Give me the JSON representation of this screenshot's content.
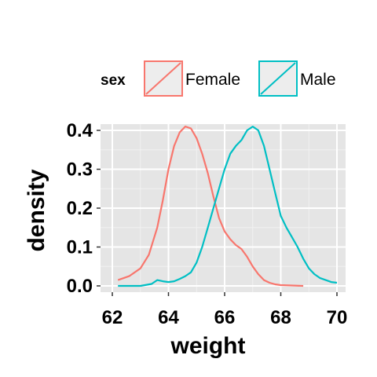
{
  "chart_data": {
    "type": "line",
    "title": "",
    "xlabel": "weight",
    "ylabel": "density",
    "xlim": [
      62,
      70
    ],
    "ylim": [
      0,
      0.4
    ],
    "x_ticks": [
      "62",
      "64",
      "66",
      "68",
      "70"
    ],
    "y_ticks": [
      "0.0",
      "0.1",
      "0.2",
      "0.3",
      "0.4"
    ],
    "grid": true,
    "legend": {
      "title": "sex",
      "placement": "top",
      "entries": [
        "Female",
        "Male"
      ]
    },
    "series": [
      {
        "name": "Female",
        "color": "#f8766d",
        "x": [
          62.2,
          62.6,
          63.0,
          63.3,
          63.6,
          63.8,
          64.0,
          64.2,
          64.4,
          64.6,
          64.8,
          65.0,
          65.2,
          65.4,
          65.6,
          65.8,
          66.0,
          66.2,
          66.4,
          66.6,
          66.8,
          67.0,
          67.2,
          67.4,
          67.6,
          67.8,
          68.0,
          68.4,
          68.8
        ],
        "y": [
          0.015,
          0.025,
          0.045,
          0.08,
          0.15,
          0.22,
          0.3,
          0.36,
          0.395,
          0.41,
          0.405,
          0.38,
          0.34,
          0.29,
          0.23,
          0.175,
          0.14,
          0.12,
          0.105,
          0.095,
          0.075,
          0.05,
          0.03,
          0.015,
          0.008,
          0.004,
          0.002,
          0.001,
          0.0
        ]
      },
      {
        "name": "Male",
        "color": "#00bfc4",
        "x": [
          62.2,
          63.0,
          63.4,
          63.6,
          63.8,
          64.0,
          64.2,
          64.4,
          64.6,
          64.8,
          65.0,
          65.2,
          65.4,
          65.6,
          65.8,
          66.0,
          66.2,
          66.4,
          66.6,
          66.8,
          67.0,
          67.2,
          67.4,
          67.6,
          67.8,
          68.0,
          68.2,
          68.4,
          68.6,
          68.8,
          69.0,
          69.2,
          69.4,
          69.6,
          69.8,
          70.0
        ],
        "y": [
          0.0,
          0.0,
          0.005,
          0.015,
          0.012,
          0.01,
          0.012,
          0.018,
          0.025,
          0.035,
          0.06,
          0.1,
          0.15,
          0.2,
          0.25,
          0.3,
          0.34,
          0.36,
          0.375,
          0.4,
          0.41,
          0.4,
          0.36,
          0.3,
          0.24,
          0.18,
          0.15,
          0.125,
          0.1,
          0.07,
          0.045,
          0.03,
          0.02,
          0.015,
          0.01,
          0.008
        ]
      }
    ]
  }
}
